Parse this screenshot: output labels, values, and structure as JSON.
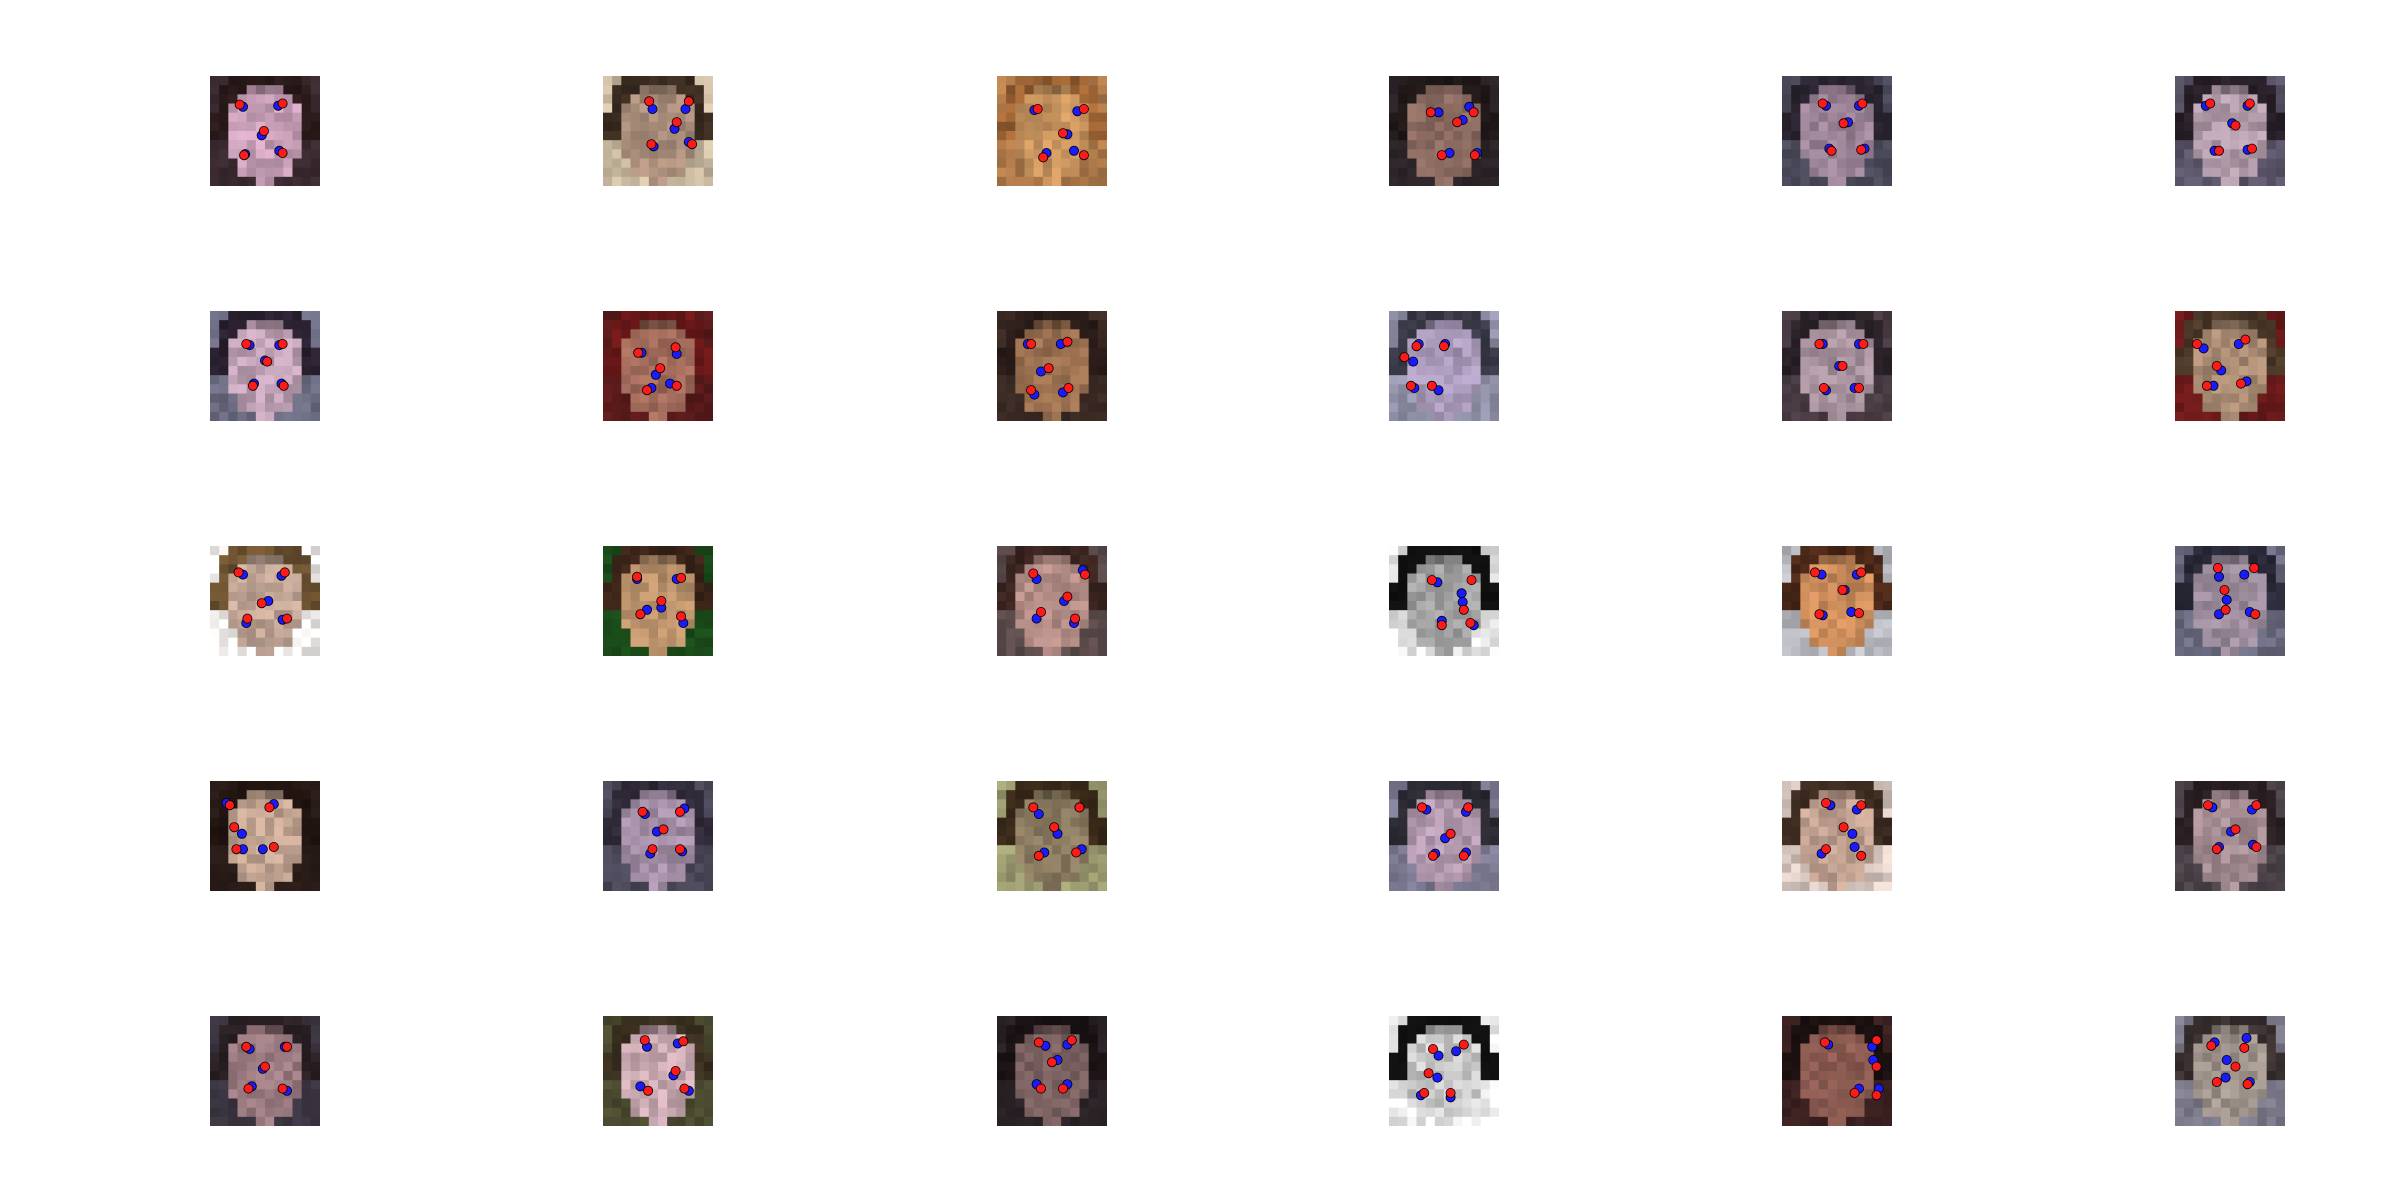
{
  "grid": {
    "rows": 5,
    "cols": 6
  },
  "marker_colors": {
    "predicted": "#ff1a1a",
    "ground_truth": "#1a1aff",
    "outline": "#000000"
  },
  "faces": [
    {
      "skin": "#c9a0b8",
      "hair": "#2a1a1a",
      "bg": "#3a2a30",
      "pts": [
        [
          0.27,
          0.26
        ],
        [
          0.66,
          0.25
        ],
        [
          0.49,
          0.5
        ],
        [
          0.31,
          0.72
        ],
        [
          0.66,
          0.7
        ]
      ],
      "gts": [
        [
          0.3,
          0.28
        ],
        [
          0.62,
          0.27
        ],
        [
          0.47,
          0.54
        ],
        [
          0.32,
          0.71
        ],
        [
          0.63,
          0.68
        ]
      ]
    },
    {
      "skin": "#a88c7a",
      "hair": "#3a2c20",
      "bg": "#c9b9a0",
      "pts": [
        [
          0.42,
          0.23
        ],
        [
          0.78,
          0.23
        ],
        [
          0.67,
          0.42
        ],
        [
          0.44,
          0.62
        ],
        [
          0.81,
          0.62
        ]
      ],
      "gts": [
        [
          0.45,
          0.3
        ],
        [
          0.75,
          0.3
        ],
        [
          0.65,
          0.48
        ],
        [
          0.46,
          0.64
        ],
        [
          0.78,
          0.6
        ]
      ]
    },
    {
      "skin": "#c8945e",
      "hair": "#9a6234",
      "bg": "#b07a4a",
      "pts": [
        [
          0.37,
          0.3
        ],
        [
          0.79,
          0.3
        ],
        [
          0.6,
          0.52
        ],
        [
          0.42,
          0.74
        ],
        [
          0.79,
          0.72
        ]
      ],
      "gts": [
        [
          0.34,
          0.31
        ],
        [
          0.73,
          0.32
        ],
        [
          0.64,
          0.53
        ],
        [
          0.45,
          0.7
        ],
        [
          0.7,
          0.68
        ]
      ]
    },
    {
      "skin": "#8a6a60",
      "hair": "#201818",
      "bg": "#2c2428",
      "pts": [
        [
          0.38,
          0.33
        ],
        [
          0.77,
          0.33
        ],
        [
          0.62,
          0.42
        ],
        [
          0.48,
          0.72
        ],
        [
          0.78,
          0.72
        ]
      ],
      "gts": [
        [
          0.45,
          0.33
        ],
        [
          0.73,
          0.28
        ],
        [
          0.67,
          0.4
        ],
        [
          0.55,
          0.7
        ],
        [
          0.8,
          0.7
        ]
      ]
    },
    {
      "skin": "#9a8296",
      "hair": "#2a2430",
      "bg": "#4a4a5a",
      "pts": [
        [
          0.37,
          0.25
        ],
        [
          0.73,
          0.25
        ],
        [
          0.56,
          0.43
        ],
        [
          0.45,
          0.68
        ],
        [
          0.72,
          0.67
        ]
      ],
      "gts": [
        [
          0.4,
          0.27
        ],
        [
          0.7,
          0.27
        ],
        [
          0.6,
          0.42
        ],
        [
          0.43,
          0.66
        ],
        [
          0.75,
          0.66
        ]
      ]
    },
    {
      "skin": "#b09aa8",
      "hair": "#282028",
      "bg": "#5a5468",
      "pts": [
        [
          0.32,
          0.25
        ],
        [
          0.68,
          0.25
        ],
        [
          0.55,
          0.45
        ],
        [
          0.4,
          0.68
        ],
        [
          0.7,
          0.66
        ]
      ],
      "gts": [
        [
          0.28,
          0.27
        ],
        [
          0.66,
          0.27
        ],
        [
          0.52,
          0.43
        ],
        [
          0.36,
          0.68
        ],
        [
          0.66,
          0.67
        ]
      ]
    },
    {
      "skin": "#bea0b4",
      "hair": "#2a2030",
      "bg": "#6a6a80",
      "pts": [
        [
          0.33,
          0.3
        ],
        [
          0.66,
          0.3
        ],
        [
          0.52,
          0.46
        ],
        [
          0.39,
          0.68
        ],
        [
          0.67,
          0.68
        ]
      ],
      "gts": [
        [
          0.36,
          0.31
        ],
        [
          0.63,
          0.31
        ],
        [
          0.5,
          0.45
        ],
        [
          0.4,
          0.66
        ],
        [
          0.65,
          0.66
        ]
      ]
    },
    {
      "skin": "#a06a5a",
      "hair": "#6a1818",
      "bg": "#5a1a1a",
      "pts": [
        [
          0.32,
          0.38
        ],
        [
          0.66,
          0.33
        ],
        [
          0.52,
          0.52
        ],
        [
          0.4,
          0.72
        ],
        [
          0.67,
          0.68
        ]
      ],
      "gts": [
        [
          0.35,
          0.38
        ],
        [
          0.67,
          0.39
        ],
        [
          0.48,
          0.58
        ],
        [
          0.44,
          0.7
        ],
        [
          0.61,
          0.66
        ]
      ]
    },
    {
      "skin": "#9a7050",
      "hair": "#2a1c18",
      "bg": "#3a2a24",
      "pts": [
        [
          0.31,
          0.3
        ],
        [
          0.64,
          0.28
        ],
        [
          0.47,
          0.52
        ],
        [
          0.31,
          0.72
        ],
        [
          0.65,
          0.7
        ]
      ],
      "gts": [
        [
          0.28,
          0.3
        ],
        [
          0.58,
          0.3
        ],
        [
          0.4,
          0.55
        ],
        [
          0.34,
          0.76
        ],
        [
          0.6,
          0.74
        ]
      ]
    },
    {
      "skin": "#a898b8",
      "hair": "#3a3a48",
      "bg": "#9090a8",
      "pts": [
        [
          0.25,
          0.32
        ],
        [
          0.5,
          0.32
        ],
        [
          0.14,
          0.42
        ],
        [
          0.2,
          0.68
        ],
        [
          0.39,
          0.68
        ]
      ],
      "gts": [
        [
          0.27,
          0.3
        ],
        [
          0.51,
          0.3
        ],
        [
          0.22,
          0.46
        ],
        [
          0.23,
          0.7
        ],
        [
          0.45,
          0.72
        ]
      ]
    },
    {
      "skin": "#a8929e",
      "hair": "#2a2228",
      "bg": "#4a3c44",
      "pts": [
        [
          0.34,
          0.3
        ],
        [
          0.74,
          0.3
        ],
        [
          0.55,
          0.5
        ],
        [
          0.38,
          0.7
        ],
        [
          0.7,
          0.7
        ]
      ],
      "gts": [
        [
          0.37,
          0.3
        ],
        [
          0.7,
          0.3
        ],
        [
          0.52,
          0.5
        ],
        [
          0.4,
          0.72
        ],
        [
          0.66,
          0.7
        ]
      ]
    },
    {
      "skin": "#a88a72",
      "hair": "#4a3828",
      "bg": "#6a1a1a",
      "pts": [
        [
          0.2,
          0.3
        ],
        [
          0.64,
          0.26
        ],
        [
          0.38,
          0.5
        ],
        [
          0.29,
          0.68
        ],
        [
          0.6,
          0.66
        ]
      ],
      "gts": [
        [
          0.26,
          0.34
        ],
        [
          0.58,
          0.3
        ],
        [
          0.42,
          0.54
        ],
        [
          0.35,
          0.68
        ],
        [
          0.65,
          0.64
        ]
      ]
    },
    {
      "skin": "#c0a494",
      "hair": "#6a5030",
      "bg": "#f4f0ee",
      "pts": [
        [
          0.26,
          0.24
        ],
        [
          0.68,
          0.24
        ],
        [
          0.47,
          0.52
        ],
        [
          0.34,
          0.66
        ],
        [
          0.7,
          0.66
        ]
      ],
      "gts": [
        [
          0.3,
          0.26
        ],
        [
          0.65,
          0.27
        ],
        [
          0.53,
          0.5
        ],
        [
          0.33,
          0.7
        ],
        [
          0.66,
          0.67
        ]
      ]
    },
    {
      "skin": "#b8906a",
      "hair": "#3a2418",
      "bg": "#1a4a1a",
      "pts": [
        [
          0.31,
          0.28
        ],
        [
          0.71,
          0.29
        ],
        [
          0.53,
          0.5
        ],
        [
          0.34,
          0.62
        ],
        [
          0.71,
          0.64
        ]
      ],
      "gts": [
        [
          0.31,
          0.3
        ],
        [
          0.67,
          0.3
        ],
        [
          0.53,
          0.56
        ],
        [
          0.4,
          0.58
        ],
        [
          0.73,
          0.7
        ]
      ]
    },
    {
      "skin": "#b08a84",
      "hair": "#3a2420",
      "bg": "#5a4a4a",
      "pts": [
        [
          0.33,
          0.25
        ],
        [
          0.8,
          0.26
        ],
        [
          0.64,
          0.46
        ],
        [
          0.4,
          0.6
        ],
        [
          0.71,
          0.66
        ]
      ],
      "gts": [
        [
          0.36,
          0.3
        ],
        [
          0.78,
          0.22
        ],
        [
          0.61,
          0.5
        ],
        [
          0.36,
          0.66
        ],
        [
          0.7,
          0.7
        ]
      ]
    },
    {
      "skin": "#a0a0a0",
      "hair": "#101010",
      "bg": "#e6e6e6",
      "pts": [
        [
          0.39,
          0.31
        ],
        [
          0.75,
          0.31
        ],
        [
          0.68,
          0.58
        ],
        [
          0.48,
          0.72
        ],
        [
          0.74,
          0.7
        ]
      ],
      "gts": [
        [
          0.44,
          0.33
        ],
        [
          0.66,
          0.43
        ],
        [
          0.67,
          0.51
        ],
        [
          0.48,
          0.68
        ],
        [
          0.77,
          0.72
        ]
      ]
    },
    {
      "skin": "#c88a5a",
      "hair": "#4a2818",
      "bg": "#b8b8c0",
      "pts": [
        [
          0.3,
          0.24
        ],
        [
          0.72,
          0.24
        ],
        [
          0.55,
          0.4
        ],
        [
          0.34,
          0.62
        ],
        [
          0.7,
          0.61
        ]
      ],
      "gts": [
        [
          0.36,
          0.26
        ],
        [
          0.68,
          0.26
        ],
        [
          0.57,
          0.4
        ],
        [
          0.37,
          0.63
        ],
        [
          0.63,
          0.6
        ]
      ]
    },
    {
      "skin": "#9a8a9a",
      "hair": "#2a2a3a",
      "bg": "#6a6a80",
      "pts": [
        [
          0.39,
          0.2
        ],
        [
          0.72,
          0.2
        ],
        [
          0.45,
          0.4
        ],
        [
          0.46,
          0.58
        ],
        [
          0.73,
          0.62
        ]
      ],
      "gts": [
        [
          0.4,
          0.28
        ],
        [
          0.63,
          0.26
        ],
        [
          0.47,
          0.49
        ],
        [
          0.4,
          0.62
        ],
        [
          0.68,
          0.6
        ]
      ]
    },
    {
      "skin": "#c0a290",
      "hair": "#201410",
      "bg": "#2a1c18",
      "pts": [
        [
          0.18,
          0.22
        ],
        [
          0.54,
          0.24
        ],
        [
          0.22,
          0.42
        ],
        [
          0.24,
          0.62
        ],
        [
          0.58,
          0.6
        ]
      ],
      "gts": [
        [
          0.15,
          0.2
        ],
        [
          0.58,
          0.21
        ],
        [
          0.29,
          0.48
        ],
        [
          0.3,
          0.62
        ],
        [
          0.48,
          0.62
        ]
      ]
    },
    {
      "skin": "#a38ea6",
      "hair": "#302a38",
      "bg": "#4a4858",
      "pts": [
        [
          0.36,
          0.28
        ],
        [
          0.7,
          0.28
        ],
        [
          0.55,
          0.44
        ],
        [
          0.45,
          0.62
        ],
        [
          0.7,
          0.62
        ]
      ],
      "gts": [
        [
          0.38,
          0.3
        ],
        [
          0.74,
          0.25
        ],
        [
          0.49,
          0.46
        ],
        [
          0.43,
          0.66
        ],
        [
          0.72,
          0.64
        ]
      ]
    },
    {
      "skin": "#8a7a60",
      "hair": "#3a2a1a",
      "bg": "#9a9a70",
      "pts": [
        [
          0.33,
          0.24
        ],
        [
          0.75,
          0.24
        ],
        [
          0.52,
          0.42
        ],
        [
          0.38,
          0.68
        ],
        [
          0.72,
          0.65
        ]
      ],
      "gts": [
        [
          0.38,
          0.3
        ],
        [
          0.75,
          0.24
        ],
        [
          0.55,
          0.48
        ],
        [
          0.43,
          0.65
        ],
        [
          0.77,
          0.62
        ]
      ]
    },
    {
      "skin": "#b49ab0",
      "hair": "#2a2830",
      "bg": "#7a7890",
      "pts": [
        [
          0.3,
          0.24
        ],
        [
          0.72,
          0.24
        ],
        [
          0.56,
          0.48
        ],
        [
          0.4,
          0.68
        ],
        [
          0.68,
          0.68
        ]
      ],
      "gts": [
        [
          0.34,
          0.26
        ],
        [
          0.7,
          0.28
        ],
        [
          0.51,
          0.52
        ],
        [
          0.42,
          0.66
        ],
        [
          0.7,
          0.65
        ]
      ]
    },
    {
      "skin": "#c0a090",
      "hair": "#3a2a20",
      "bg": "#d8c8c0",
      "pts": [
        [
          0.4,
          0.2
        ],
        [
          0.72,
          0.22
        ],
        [
          0.56,
          0.42
        ],
        [
          0.4,
          0.62
        ],
        [
          0.72,
          0.68
        ]
      ],
      "gts": [
        [
          0.44,
          0.22
        ],
        [
          0.68,
          0.26
        ],
        [
          0.64,
          0.48
        ],
        [
          0.36,
          0.66
        ],
        [
          0.66,
          0.6
        ]
      ]
    },
    {
      "skin": "#a48c92",
      "hair": "#2a2024",
      "bg": "#4a4248",
      "pts": [
        [
          0.3,
          0.22
        ],
        [
          0.74,
          0.22
        ],
        [
          0.55,
          0.44
        ],
        [
          0.38,
          0.62
        ],
        [
          0.74,
          0.6
        ]
      ],
      "gts": [
        [
          0.34,
          0.24
        ],
        [
          0.7,
          0.26
        ],
        [
          0.51,
          0.46
        ],
        [
          0.4,
          0.6
        ],
        [
          0.71,
          0.58
        ]
      ]
    },
    {
      "skin": "#9a7a80",
      "hair": "#2a2024",
      "bg": "#3a3440",
      "pts": [
        [
          0.33,
          0.28
        ],
        [
          0.7,
          0.28
        ],
        [
          0.5,
          0.46
        ],
        [
          0.35,
          0.66
        ],
        [
          0.66,
          0.66
        ]
      ],
      "gts": [
        [
          0.36,
          0.3
        ],
        [
          0.68,
          0.28
        ],
        [
          0.48,
          0.48
        ],
        [
          0.38,
          0.64
        ],
        [
          0.7,
          0.68
        ]
      ]
    },
    {
      "skin": "#c8a8b0",
      "hair": "#3a3020",
      "bg": "#4a4a30",
      "pts": [
        [
          0.38,
          0.22
        ],
        [
          0.73,
          0.23
        ],
        [
          0.66,
          0.5
        ],
        [
          0.41,
          0.68
        ],
        [
          0.74,
          0.66
        ]
      ],
      "gts": [
        [
          0.4,
          0.28
        ],
        [
          0.68,
          0.25
        ],
        [
          0.64,
          0.54
        ],
        [
          0.34,
          0.64
        ],
        [
          0.78,
          0.68
        ]
      ]
    },
    {
      "skin": "#7a6060",
      "hair": "#1a1214",
      "bg": "#2a2226",
      "pts": [
        [
          0.38,
          0.24
        ],
        [
          0.68,
          0.22
        ],
        [
          0.5,
          0.42
        ],
        [
          0.4,
          0.66
        ],
        [
          0.6,
          0.66
        ]
      ],
      "gts": [
        [
          0.44,
          0.27
        ],
        [
          0.64,
          0.26
        ],
        [
          0.55,
          0.4
        ],
        [
          0.36,
          0.62
        ],
        [
          0.64,
          0.62
        ]
      ]
    },
    {
      "skin": "#c8c8c8",
      "hair": "#101010",
      "bg": "#f0f0f0",
      "pts": [
        [
          0.4,
          0.3
        ],
        [
          0.68,
          0.26
        ],
        [
          0.36,
          0.52
        ],
        [
          0.32,
          0.7
        ],
        [
          0.56,
          0.7
        ]
      ],
      "gts": [
        [
          0.45,
          0.36
        ],
        [
          0.61,
          0.32
        ],
        [
          0.44,
          0.56
        ],
        [
          0.29,
          0.72
        ],
        [
          0.56,
          0.74
        ]
      ]
    },
    {
      "skin": "#8a5a50",
      "hair": "#1a1010",
      "bg": "#3a2020",
      "pts": [
        [
          0.39,
          0.24
        ],
        [
          0.86,
          0.22
        ],
        [
          0.86,
          0.46
        ],
        [
          0.66,
          0.7
        ],
        [
          0.86,
          0.72
        ]
      ],
      "gts": [
        [
          0.42,
          0.26
        ],
        [
          0.82,
          0.28
        ],
        [
          0.83,
          0.4
        ],
        [
          0.7,
          0.66
        ],
        [
          0.88,
          0.66
        ]
      ]
    },
    {
      "skin": "#a0948c",
      "hair": "#3a3030",
      "bg": "#7a7888",
      "pts": [
        [
          0.33,
          0.27
        ],
        [
          0.63,
          0.29
        ],
        [
          0.55,
          0.46
        ],
        [
          0.38,
          0.6
        ],
        [
          0.66,
          0.62
        ]
      ],
      "gts": [
        [
          0.36,
          0.24
        ],
        [
          0.65,
          0.2
        ],
        [
          0.47,
          0.4
        ],
        [
          0.46,
          0.56
        ],
        [
          0.68,
          0.6
        ]
      ]
    }
  ]
}
